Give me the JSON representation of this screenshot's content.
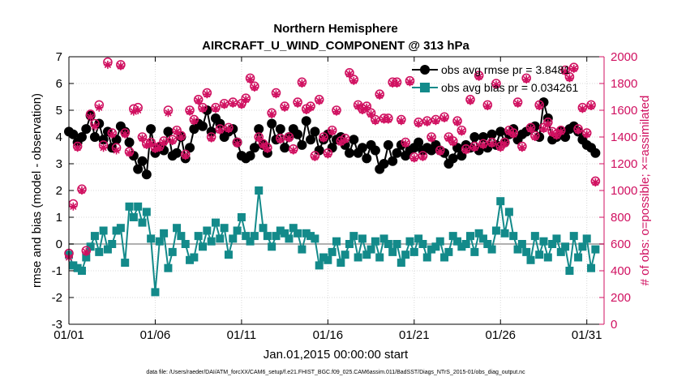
{
  "chart_data": {
    "type": "line",
    "title": "Northern Hemisphere",
    "subtitle": "AIRCRAFT_U_WIND_COMPONENT @ 313 hPa",
    "xlabel": "Jan.01,2015 00:00:00 start",
    "ylabel": "rmse and bias (model - observation)",
    "ylabel_right": "# of obs: o=possible; ×=assimilated",
    "footnote": "data file: /Users/raeder/DAI/ATM_forcXX/CAM6_setup/f.e21.FHIST_BGC.f09_025.CAM6assim.011/BadSST/Diags_NTrS_2015-01/obs_diag_output.nc",
    "xlim": [
      1,
      32
    ],
    "ylim": [
      -3,
      7
    ],
    "ylim_right": [
      0,
      2000
    ],
    "x_ticks": [
      1,
      6,
      11,
      16,
      21,
      26,
      31
    ],
    "x_tick_labels": [
      "01/01",
      "01/06",
      "01/11",
      "01/16",
      "01/21",
      "01/26",
      "01/31"
    ],
    "y_ticks": [
      -3,
      -2,
      -1,
      0,
      1,
      2,
      3,
      4,
      5,
      6,
      7
    ],
    "y_tick_labels": [
      "-3",
      "-2",
      "-1",
      "0",
      "1",
      "2",
      "3",
      "4",
      "5",
      "6",
      "7"
    ],
    "y_ticks_right": [
      0,
      200,
      400,
      600,
      800,
      1000,
      1200,
      1400,
      1600,
      1800,
      2000
    ],
    "y_tick_labels_right": [
      "0",
      "200",
      "400",
      "600",
      "800",
      "1000",
      "1200",
      "1400",
      "1600",
      "1800",
      "2000"
    ],
    "grid": true,
    "legend_position": "top-right",
    "colors": {
      "rmse": "#000000",
      "bias": "#138a8a",
      "obs": "#d01060",
      "zero_line": "#b0b0b0",
      "grid": "#d8d8d8"
    },
    "x": [
      1.0,
      1.25,
      1.5,
      1.75,
      2.0,
      2.25,
      2.5,
      2.75,
      3.0,
      3.25,
      3.5,
      3.75,
      4.0,
      4.25,
      4.5,
      4.75,
      5.0,
      5.25,
      5.5,
      5.75,
      6.0,
      6.25,
      6.5,
      6.75,
      7.0,
      7.25,
      7.5,
      7.75,
      8.0,
      8.25,
      8.5,
      8.75,
      9.0,
      9.25,
      9.5,
      9.75,
      10.0,
      10.25,
      10.5,
      10.75,
      11.0,
      11.25,
      11.5,
      11.75,
      12.0,
      12.25,
      12.5,
      12.75,
      13.0,
      13.25,
      13.5,
      13.75,
      14.0,
      14.25,
      14.5,
      14.75,
      15.0,
      15.25,
      15.5,
      15.75,
      16.0,
      16.25,
      16.5,
      16.75,
      17.0,
      17.25,
      17.5,
      17.75,
      18.0,
      18.25,
      18.5,
      18.75,
      19.0,
      19.25,
      19.5,
      19.75,
      20.0,
      20.25,
      20.5,
      20.75,
      21.0,
      21.25,
      21.5,
      21.75,
      22.0,
      22.25,
      22.5,
      22.75,
      23.0,
      23.25,
      23.5,
      23.75,
      24.0,
      24.25,
      24.5,
      24.75,
      25.0,
      25.25,
      25.5,
      25.75,
      26.0,
      26.25,
      26.5,
      26.75,
      27.0,
      27.25,
      27.5,
      27.75,
      28.0,
      28.25,
      28.5,
      28.75,
      29.0,
      29.25,
      29.5,
      29.75,
      30.0,
      30.25,
      30.5,
      30.75,
      31.0,
      31.25,
      31.5
    ],
    "series": [
      {
        "name": "obs avg rmse pr = 3.8481",
        "axis": "left",
        "marker": "circle",
        "values": [
          4.2,
          4.1,
          3.8,
          4.0,
          4.3,
          4.8,
          4.0,
          4.5,
          3.9,
          4.2,
          3.6,
          3.9,
          4.4,
          4.2,
          3.8,
          3.3,
          2.8,
          3.1,
          2.6,
          4.3,
          3.4,
          3.6,
          3.5,
          4.2,
          3.3,
          3.4,
          4.0,
          3.2,
          3.6,
          4.3,
          4.5,
          4.4,
          5.0,
          4.2,
          4.7,
          4.5,
          4.0,
          4.2,
          4.3,
          3.8,
          3.3,
          3.2,
          3.3,
          3.6,
          4.3,
          3.7,
          3.4,
          4.5,
          3.9,
          4.3,
          3.6,
          4.0,
          4.3,
          4.1,
          3.7,
          4.6,
          3.9,
          4.2,
          3.5,
          3.9,
          4.1,
          3.6,
          3.9,
          4.0,
          3.7,
          3.4,
          3.9,
          3.4,
          3.6,
          3.2,
          3.7,
          3.5,
          2.8,
          3.0,
          3.7,
          3.1,
          3.4,
          3.7,
          3.3,
          3.5,
          3.6,
          3.8,
          3.5,
          3.6,
          3.5,
          3.7,
          3.5,
          3.4,
          3.0,
          3.2,
          3.6,
          3.3,
          3.7,
          3.6,
          4.0,
          3.5,
          4.0,
          3.6,
          4.1,
          3.7,
          4.2,
          3.8,
          4.1,
          4.3,
          3.9,
          4.1,
          4.2,
          4.3,
          4.4,
          4.0,
          5.3,
          4.7,
          3.9,
          4.0,
          4.2,
          4.0,
          4.3,
          4.4,
          4.2,
          3.9,
          3.7,
          3.6,
          3.4
        ]
      },
      {
        "name": "obs avg bias pr = 0.034261",
        "axis": "left",
        "marker": "square",
        "values": [
          -0.4,
          -0.8,
          -0.9,
          -1.0,
          -0.5,
          -0.1,
          0.3,
          -0.3,
          0.5,
          -0.2,
          0.0,
          0.5,
          0.6,
          -0.7,
          1.4,
          1.0,
          1.4,
          0.8,
          1.2,
          0.2,
          -1.8,
          0.1,
          0.4,
          -0.9,
          -0.3,
          0.6,
          0.3,
          0.0,
          -0.6,
          -0.5,
          0.3,
          -0.1,
          0.5,
          0.1,
          0.8,
          0.2,
          0.6,
          -0.4,
          0.2,
          0.5,
          1.0,
          0.3,
          0.1,
          0.3,
          2.0,
          0.6,
          0.3,
          -0.1,
          0.3,
          0.5,
          0.4,
          0.2,
          0.6,
          0.4,
          -0.2,
          0.4,
          0.3,
          0.2,
          -0.8,
          -0.5,
          -0.6,
          -0.3,
          0.1,
          -0.7,
          -0.4,
          0.0,
          0.3,
          -0.5,
          0.2,
          -0.4,
          -0.2,
          0.1,
          -0.5,
          0.2,
          0.0,
          -0.3,
          0.0,
          -0.7,
          -0.4,
          0.1,
          -0.3,
          0.2,
          0.0,
          -0.5,
          -0.2,
          -0.1,
          0.1,
          -0.5,
          -0.3,
          0.3,
          0.1,
          -0.1,
          0.0,
          0.3,
          -0.3,
          0.4,
          0.2,
          0.0,
          -0.2,
          0.5,
          1.6,
          0.4,
          1.2,
          0.3,
          -0.2,
          0.0,
          -0.3,
          -0.6,
          0.3,
          -0.4,
          0.1,
          -0.5,
          0.0,
          0.2,
          -0.3,
          -0.1,
          -1.0,
          0.3,
          -0.5,
          -0.1,
          0.2,
          -0.9,
          -0.2
        ]
      },
      {
        "name": "possible",
        "axis": "right",
        "marker": "circle-open",
        "values": [
          530,
          900,
          1330,
          1010,
          550,
          1570,
          1500,
          1640,
          1340,
          1960,
          1430,
          1320,
          1940,
          1430,
          1290,
          1610,
          1620,
          1400,
          1350,
          1360,
          1320,
          1330,
          1370,
          1600,
          1380,
          1450,
          1410,
          1270,
          1600,
          1530,
          1680,
          1620,
          1730,
          1400,
          1620,
          1460,
          1650,
          1470,
          1660,
          1360,
          1650,
          1690,
          1840,
          1780,
          1400,
          1350,
          1320,
          1580,
          1730,
          1390,
          1630,
          1400,
          1310,
          1660,
          1810,
          1610,
          1630,
          1260,
          1680,
          1400,
          1280,
          1450,
          1600,
          1370,
          1390,
          1880,
          1830,
          1640,
          1610,
          1630,
          1580,
          1530,
          1720,
          1540,
          1540,
          1810,
          1810,
          1530,
          1360,
          1820,
          1250,
          1510,
          1260,
          1520,
          1400,
          1530,
          1300,
          1550,
          1400,
          1370,
          1520,
          1450,
          1310,
          1680,
          1330,
          1860,
          1350,
          1640,
          1360,
          1800,
          1330,
          1360,
          1450,
          1430,
          1660,
          1330,
          1840,
          1470,
          1410,
          1640,
          1470,
          1510,
          1440,
          1420,
          1450,
          1900,
          1850,
          1920,
          1460,
          1620,
          1430,
          1640,
          1070
        ]
      },
      {
        "name": "assimilated",
        "axis": "right",
        "marker": "asterisk",
        "values": [
          500,
          880,
          1320,
          1000,
          540,
          1550,
          1480,
          1620,
          1320,
          1940,
          1420,
          1300,
          1930,
          1420,
          1280,
          1590,
          1600,
          1390,
          1340,
          1350,
          1310,
          1320,
          1360,
          1580,
          1370,
          1440,
          1400,
          1260,
          1590,
          1520,
          1670,
          1610,
          1720,
          1390,
          1610,
          1450,
          1640,
          1460,
          1650,
          1350,
          1640,
          1680,
          1830,
          1770,
          1390,
          1340,
          1310,
          1570,
          1720,
          1380,
          1620,
          1390,
          1300,
          1650,
          1800,
          1600,
          1620,
          1250,
          1670,
          1390,
          1270,
          1440,
          1590,
          1360,
          1380,
          1870,
          1820,
          1630,
          1600,
          1620,
          1570,
          1520,
          1710,
          1530,
          1530,
          1800,
          1800,
          1520,
          1350,
          1810,
          1240,
          1500,
          1250,
          1510,
          1390,
          1520,
          1290,
          1540,
          1390,
          1360,
          1510,
          1440,
          1300,
          1670,
          1320,
          1850,
          1340,
          1630,
          1350,
          1790,
          1320,
          1350,
          1440,
          1420,
          1650,
          1320,
          1830,
          1460,
          1400,
          1630,
          1460,
          1500,
          1430,
          1410,
          1440,
          1890,
          1840,
          1910,
          1450,
          1610,
          1420,
          1630,
          1060
        ]
      }
    ]
  }
}
